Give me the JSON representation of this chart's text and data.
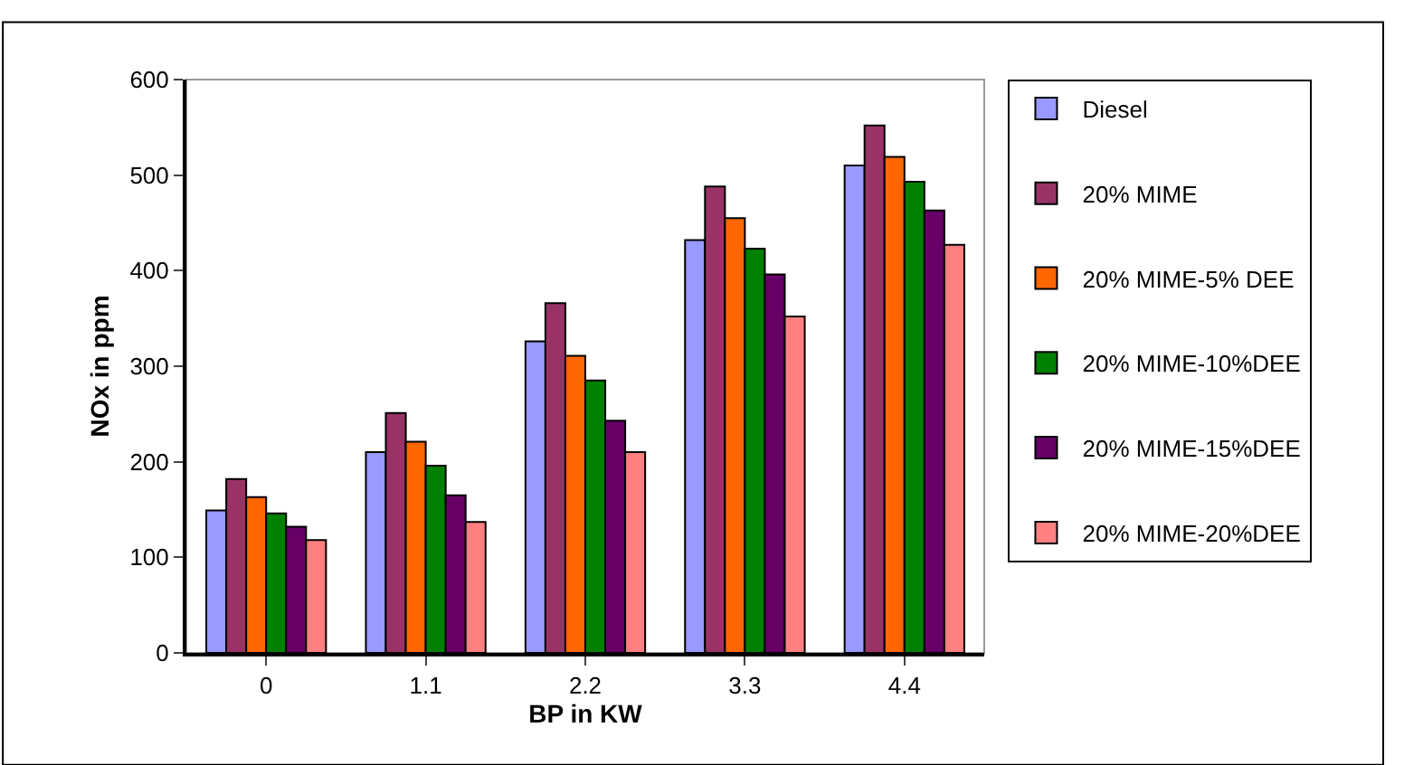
{
  "chart_data": {
    "type": "bar",
    "xlabel": "BP in KW",
    "ylabel": "NOx in ppm",
    "categories": [
      "0",
      "1.1",
      "2.2",
      "3.3",
      "4.4"
    ],
    "series": [
      {
        "name": "Diesel",
        "color": "#9999ff",
        "values": [
          149,
          210,
          326,
          432,
          510
        ]
      },
      {
        "name": "20% MIME",
        "color": "#993366",
        "values": [
          182,
          251,
          366,
          488,
          552
        ]
      },
      {
        "name": "20% MIME-5% DEE",
        "color": "#ff6600",
        "values": [
          163,
          221,
          311,
          455,
          519
        ]
      },
      {
        "name": "20% MIME-10%DEE",
        "color": "#008000",
        "values": [
          146,
          196,
          285,
          423,
          493
        ]
      },
      {
        "name": "20% MIME-15%DEE",
        "color": "#660066",
        "values": [
          132,
          165,
          243,
          396,
          463
        ]
      },
      {
        "name": "20% MIME-20%DEE",
        "color": "#ff8080",
        "values": [
          118,
          137,
          210,
          352,
          427
        ]
      }
    ],
    "ylim": [
      0,
      600
    ],
    "yticks": [
      0,
      100,
      200,
      300,
      400,
      500,
      600
    ],
    "grid": false,
    "legend": "right"
  }
}
